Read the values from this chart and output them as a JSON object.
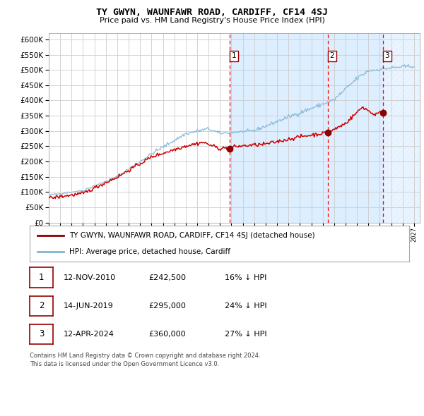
{
  "title": "TY GWYN, WAUNFAWR ROAD, CARDIFF, CF14 4SJ",
  "subtitle": "Price paid vs. HM Land Registry's House Price Index (HPI)",
  "bg_color": "#ffffff",
  "grid_color": "#cccccc",
  "hpi_color": "#7fb3d3",
  "price_color": "#cc0000",
  "shaded_region_color": "#ddeeff",
  "transactions": [
    {
      "date_num": 2010.87,
      "price": 242500,
      "label": "1"
    },
    {
      "date_num": 2019.45,
      "price": 295000,
      "label": "2"
    },
    {
      "date_num": 2024.28,
      "price": 360000,
      "label": "3"
    }
  ],
  "transaction_labels": [
    {
      "label": "1",
      "date": "12-NOV-2010",
      "price": "£242,500",
      "pct": "16%",
      "arrow": "↓"
    },
    {
      "label": "2",
      "date": "14-JUN-2019",
      "price": "£295,000",
      "pct": "24%",
      "arrow": "↓"
    },
    {
      "label": "3",
      "date": "12-APR-2024",
      "price": "£360,000",
      "pct": "27%",
      "arrow": "↓"
    }
  ],
  "legend_line1": "TY GWYN, WAUNFAWR ROAD, CARDIFF, CF14 4SJ (detached house)",
  "legend_line2": "HPI: Average price, detached house, Cardiff",
  "footer": "Contains HM Land Registry data © Crown copyright and database right 2024.\nThis data is licensed under the Open Government Licence v3.0.",
  "ylim": [
    0,
    620000
  ],
  "yticks": [
    0,
    50000,
    100000,
    150000,
    200000,
    250000,
    300000,
    350000,
    400000,
    450000,
    500000,
    550000,
    600000
  ],
  "xmin": 1995,
  "xmax": 2027.5,
  "shaded_start": 2010.87,
  "shaded_end": 2024.28,
  "hatch_start": 2024.28,
  "hatch_end": 2027.5
}
